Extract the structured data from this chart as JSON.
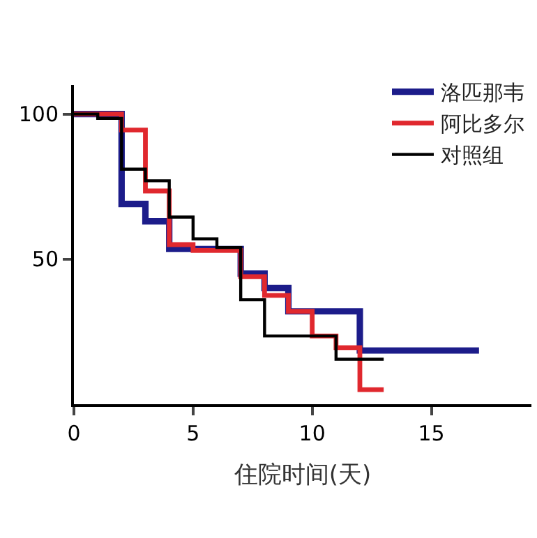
{
  "chart_data": {
    "type": "step",
    "xlabel": "住院时间(天)",
    "xlim": [
      0,
      19.2
    ],
    "xticks": [
      0,
      5,
      10,
      15
    ],
    "ylim": [
      0,
      110
    ],
    "yticks": [
      50,
      100
    ],
    "legend": "top right",
    "marker": "none",
    "line_style": "solid",
    "series": [
      {
        "name": "洛匹那韦",
        "color": "#1c1c8a",
        "x": [
          0,
          2,
          3,
          4,
          7,
          8,
          9,
          12,
          17
        ],
        "values": [
          100,
          69,
          63,
          53.5,
          45,
          40,
          32,
          18.5,
          18.5
        ]
      },
      {
        "name": "阿比多尔",
        "color": "#e0282e",
        "x": [
          0,
          2,
          3,
          4,
          5,
          7,
          8,
          9,
          10,
          11,
          12,
          13
        ],
        "values": [
          100,
          94.5,
          73.5,
          55,
          53,
          44,
          37.5,
          32,
          23.5,
          19.5,
          5,
          5
        ]
      },
      {
        "name": "对照组",
        "color": "#000000",
        "x": [
          0,
          1,
          2,
          3,
          4,
          5,
          6,
          7,
          8,
          11,
          13
        ],
        "values": [
          100,
          98.5,
          81,
          77,
          64.5,
          57,
          54,
          36,
          23.5,
          15.5,
          15.5
        ]
      }
    ]
  }
}
